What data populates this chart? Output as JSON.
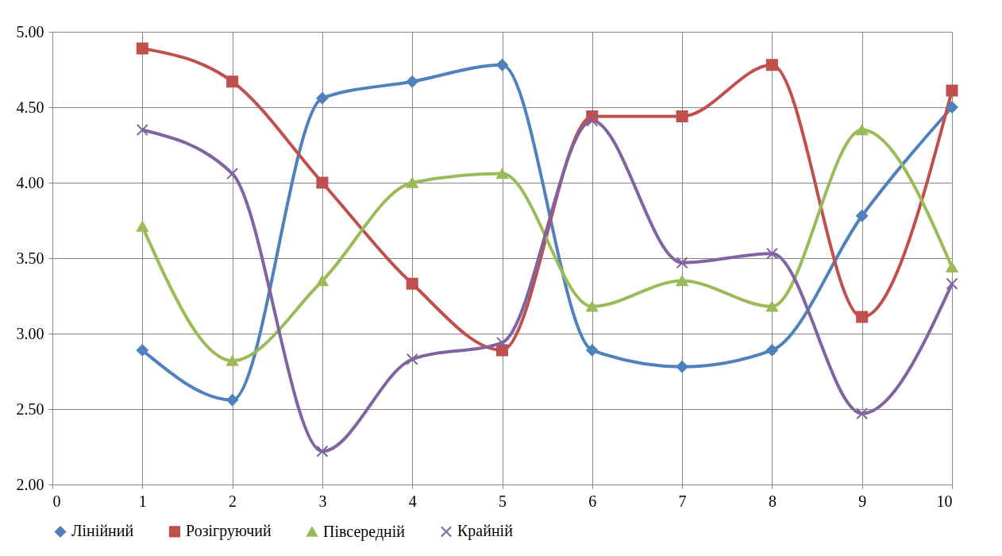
{
  "chart_data": {
    "type": "line",
    "x": [
      1,
      2,
      3,
      4,
      5,
      6,
      7,
      8,
      9,
      10
    ],
    "xlim": [
      0,
      10
    ],
    "xticks": [
      0,
      1,
      2,
      3,
      4,
      5,
      6,
      7,
      8,
      9,
      10
    ],
    "ylim": [
      2,
      5
    ],
    "yticks": [
      {
        "value": 2,
        "label": "2.00"
      },
      {
        "value": 2.5,
        "label": "2.50"
      },
      {
        "value": 3,
        "label": "3.00"
      },
      {
        "value": 3.5,
        "label": "3.50"
      },
      {
        "value": 4,
        "label": "4.00"
      },
      {
        "value": 4.5,
        "label": "4.50"
      },
      {
        "value": 5,
        "label": "5.00"
      }
    ],
    "grid": true,
    "legend": "bottom",
    "line_style": "solid",
    "series": [
      {
        "name": "Лінійний",
        "color": "#4f81bd",
        "marker": "diamond",
        "values": [
          2.89,
          2.56,
          4.56,
          4.67,
          4.78,
          2.89,
          2.78,
          2.89,
          3.78,
          4.5
        ]
      },
      {
        "name": "Розігруючий",
        "color": "#c0504d",
        "marker": "square",
        "values": [
          4.89,
          4.67,
          4.0,
          3.33,
          2.89,
          4.44,
          4.44,
          4.78,
          3.11,
          4.61
        ]
      },
      {
        "name": "Півсередній",
        "color": "#9bbb59",
        "marker": "triangle",
        "values": [
          3.71,
          2.82,
          3.35,
          4.0,
          4.06,
          3.18,
          3.35,
          3.18,
          4.35,
          3.44
        ]
      },
      {
        "name": "Крайній",
        "color": "#8064a2",
        "marker": "cross",
        "values": [
          4.35,
          4.06,
          2.22,
          2.83,
          2.94,
          4.41,
          3.47,
          3.53,
          2.47,
          3.33
        ]
      }
    ]
  }
}
